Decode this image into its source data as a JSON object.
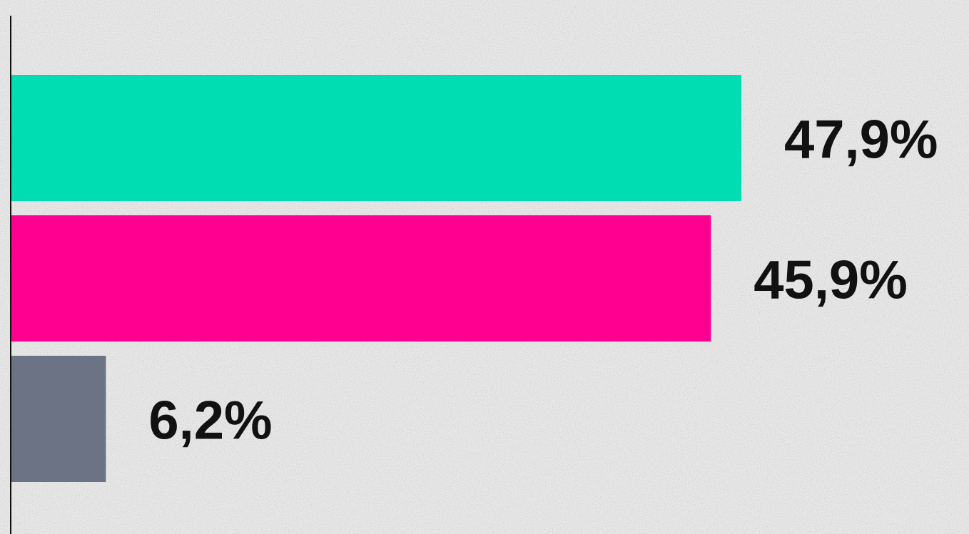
{
  "chart_data": {
    "type": "bar",
    "orientation": "horizontal",
    "categories": [
      "",
      "",
      ""
    ],
    "values": [
      47.9,
      45.9,
      6.2
    ],
    "value_labels": [
      "47,9%",
      "45,9%",
      "6,2%"
    ],
    "colors": [
      "#00ddb2",
      "#ff0090",
      "#6b7385"
    ],
    "xlim": [
      0,
      50
    ],
    "grid": false,
    "legend": "none",
    "title": "",
    "xlabel": "",
    "ylabel": ""
  }
}
